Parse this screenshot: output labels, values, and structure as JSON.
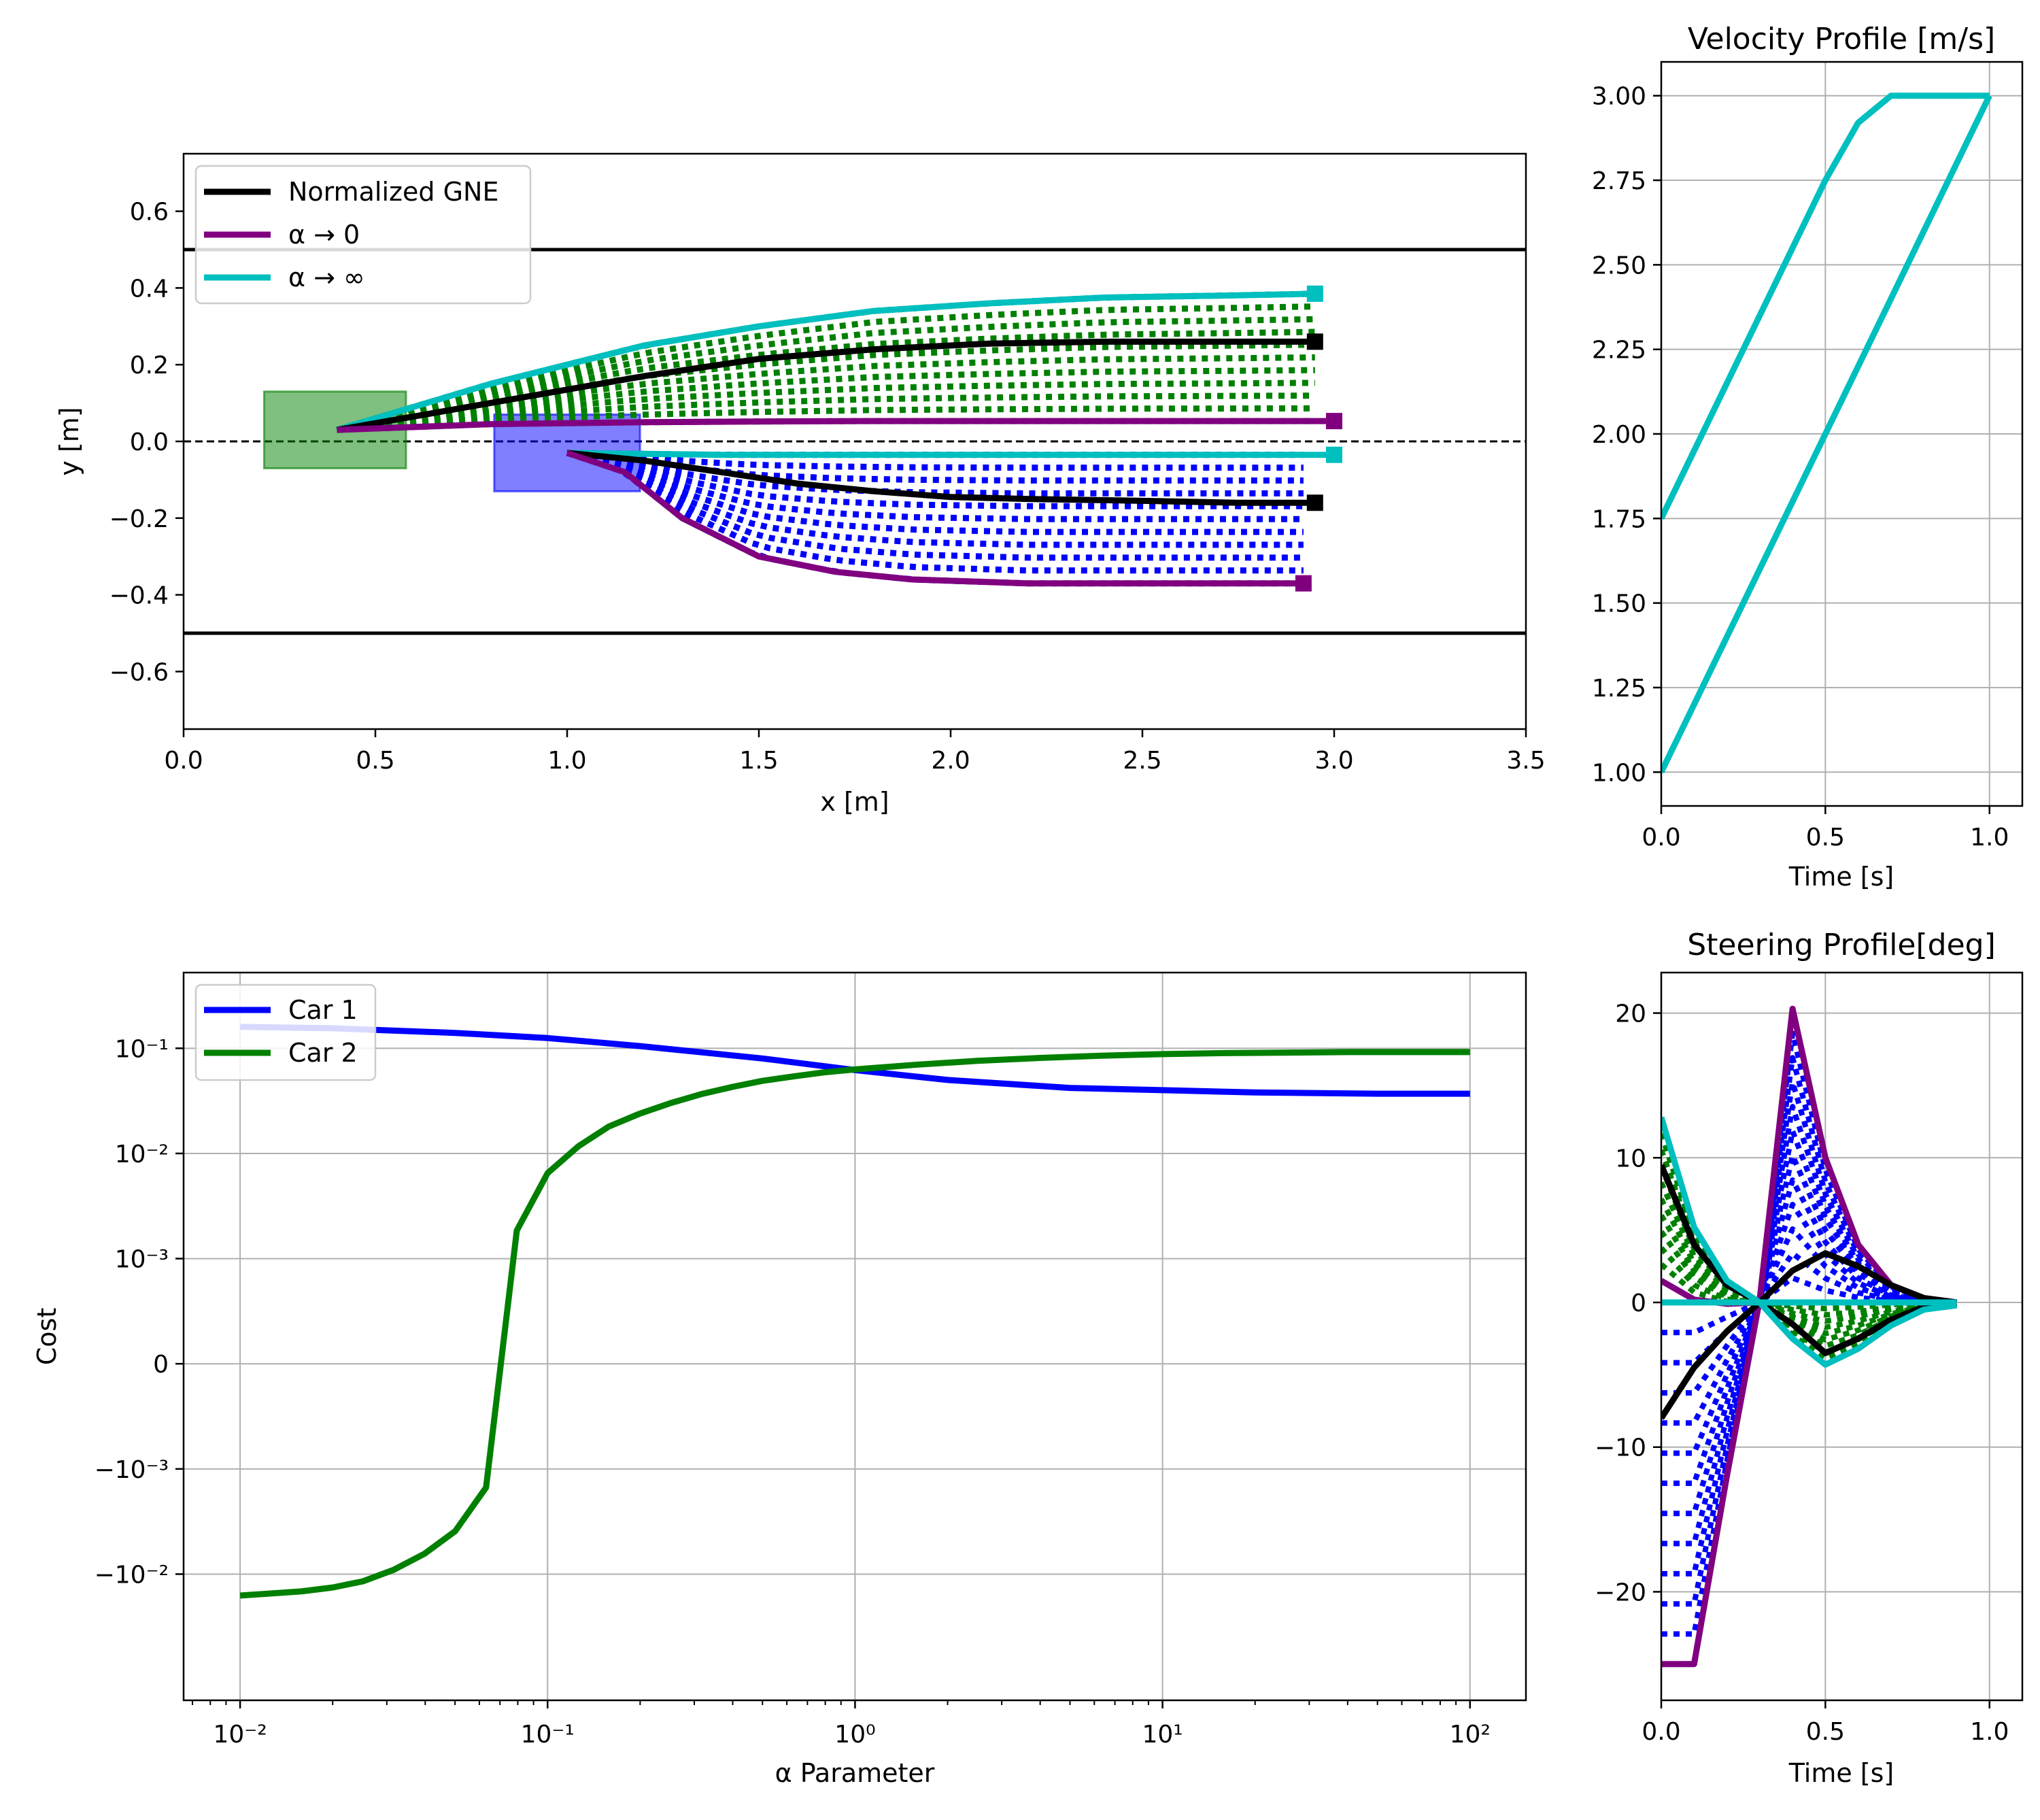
{
  "colors": {
    "gne": "#000000",
    "alpha0": "#800080",
    "alphaInf": "#00BFBF",
    "car1": "#0000FF",
    "car2": "#008000",
    "grid": "#b0b0b0"
  },
  "chart_data": [
    {
      "id": "trajectories",
      "type": "line",
      "title": "",
      "xlabel": "x [m]",
      "ylabel": "y [m]",
      "xlim": [
        0.0,
        3.5
      ],
      "ylim": [
        -0.75,
        0.75
      ],
      "xticks": [
        "0.0",
        "0.5",
        "1.0",
        "1.5",
        "2.0",
        "2.5",
        "3.0",
        "3.5"
      ],
      "yticks": [
        "0.6",
        "0.4",
        "0.2",
        "0.0",
        "−0.2",
        "−0.4",
        "−0.6"
      ],
      "legend": {
        "placement": "upper-left",
        "entries": [
          "Normalized GNE",
          "α →  0",
          "α → ∞"
        ]
      },
      "lane_bounds": [
        0.5,
        -0.5
      ],
      "center_line": 0.0,
      "vehicles": [
        {
          "name": "Car 2 start",
          "x": [
            0.21,
            0.58
          ],
          "y": [
            -0.07,
            0.13
          ],
          "color": "#008000"
        },
        {
          "name": "Car 1 start",
          "x": [
            0.81,
            1.19
          ],
          "y": [
            -0.13,
            0.07
          ],
          "color": "#0000FF"
        }
      ],
      "series": [
        {
          "name": "Car 2 α → ∞",
          "x": [
            0.4,
            0.8,
            1.2,
            1.5,
            1.8,
            2.1,
            2.4,
            2.7,
            2.95
          ],
          "y": [
            0.03,
            0.15,
            0.25,
            0.3,
            0.34,
            0.36,
            0.375,
            0.38,
            0.385
          ]
        },
        {
          "name": "Car 2 Normalized GNE",
          "x": [
            0.4,
            0.8,
            1.2,
            1.5,
            1.8,
            2.1,
            2.4,
            2.7,
            2.95
          ],
          "y": [
            0.03,
            0.1,
            0.17,
            0.215,
            0.24,
            0.255,
            0.26,
            0.26,
            0.26
          ]
        },
        {
          "name": "Car 2 α → 0",
          "x": [
            0.4,
            0.8,
            1.2,
            1.5,
            1.8,
            2.1,
            2.4,
            2.7,
            3.0
          ],
          "y": [
            0.03,
            0.045,
            0.05,
            0.052,
            0.053,
            0.053,
            0.053,
            0.053,
            0.053
          ]
        },
        {
          "name": "Car 1 α → ∞",
          "x": [
            1.0,
            1.4,
            1.8,
            2.2,
            2.6,
            3.0
          ],
          "y": [
            -0.03,
            -0.035,
            -0.035,
            -0.035,
            -0.035,
            -0.035
          ]
        },
        {
          "name": "Car 1 Normalized GNE",
          "x": [
            1.0,
            1.2,
            1.4,
            1.6,
            1.8,
            2.0,
            2.2,
            2.5,
            2.75,
            2.95
          ],
          "y": [
            -0.03,
            -0.05,
            -0.08,
            -0.11,
            -0.13,
            -0.145,
            -0.15,
            -0.155,
            -0.16,
            -0.16
          ]
        },
        {
          "name": "Car 1 α → 0",
          "x": [
            1.0,
            1.15,
            1.3,
            1.5,
            1.7,
            1.9,
            2.2,
            2.5,
            2.75,
            2.92
          ],
          "y": [
            -0.03,
            -0.08,
            -0.2,
            -0.3,
            -0.34,
            -0.36,
            -0.37,
            -0.37,
            -0.37,
            -0.37
          ]
        }
      ]
    },
    {
      "id": "velocity",
      "type": "line",
      "title": "Velocity Profile [m/s]",
      "xlabel": "Time [s]",
      "ylabel": "",
      "xlim": [
        0.0,
        1.1
      ],
      "ylim": [
        0.9,
        3.1
      ],
      "xticks": [
        "0.0",
        "0.5",
        "1.0"
      ],
      "yticks": [
        "3.00",
        "2.75",
        "2.50",
        "2.25",
        "2.00",
        "1.75",
        "1.50",
        "1.25",
        "1.00"
      ],
      "series": [
        {
          "name": "upper",
          "x": [
            0.0,
            0.5,
            0.6,
            0.7,
            1.0
          ],
          "y": [
            1.75,
            2.75,
            2.92,
            3.0,
            3.0
          ]
        },
        {
          "name": "lower",
          "x": [
            0.0,
            0.5,
            1.0
          ],
          "y": [
            1.0,
            2.0,
            3.0
          ]
        }
      ]
    },
    {
      "id": "cost",
      "type": "line",
      "title": "",
      "xlabel": "α Parameter",
      "ylabel": "Cost",
      "xscale": "log",
      "yscale": "symlog",
      "xlim": [
        0.00655,
        152
      ],
      "yticks": [
        "10⁻¹",
        "10⁻²",
        "10⁻³",
        "0",
        "−10⁻³",
        "−10⁻²"
      ],
      "xticks": [
        "10⁻²",
        "10⁻¹",
        "10⁰",
        "10¹",
        "10²"
      ],
      "legend": {
        "placement": "upper-left",
        "entries": [
          "Car 1",
          "Car 2"
        ]
      },
      "series": [
        {
          "name": "Car 1",
          "x": [
            0.01,
            0.02,
            0.05,
            0.1,
            0.2,
            0.5,
            1,
            2,
            5,
            10,
            20,
            50,
            100
          ],
          "y": [
            0.16,
            0.155,
            0.14,
            0.125,
            0.105,
            0.08,
            0.062,
            0.05,
            0.042,
            0.04,
            0.038,
            0.037,
            0.037
          ]
        },
        {
          "name": "Car 2",
          "x": [
            0.01,
            0.0158,
            0.02,
            0.0251,
            0.0316,
            0.0398,
            0.0501,
            0.0631,
            0.0794,
            0.1,
            0.126,
            0.158,
            0.2,
            0.25,
            0.32,
            0.4,
            0.5,
            0.63,
            0.79,
            1.0,
            1.6,
            2.5,
            4,
            6.3,
            10,
            16,
            25,
            40,
            63,
            100
          ],
          "y": [
            -0.016,
            -0.0146,
            -0.0134,
            -0.0117,
            -0.0091,
            -0.0064,
            -0.0039,
            -0.0015,
            0.00185,
            0.0065,
            0.0117,
            0.018,
            0.024,
            0.03,
            0.037,
            0.043,
            0.049,
            0.054,
            0.059,
            0.063,
            0.07,
            0.076,
            0.081,
            0.085,
            0.088,
            0.09,
            0.091,
            0.092,
            0.092,
            0.092
          ]
        }
      ]
    },
    {
      "id": "steering",
      "type": "line",
      "title": "Steering Profile[deg]",
      "xlabel": "Time [s]",
      "ylabel": "",
      "xlim": [
        0.0,
        1.1
      ],
      "ylim": [
        -27.5,
        22.8
      ],
      "xticks": [
        "0.0",
        "0.5",
        "1.0"
      ],
      "yticks": [
        "20",
        "10",
        "0",
        "−10",
        "−20"
      ],
      "series": [
        {
          "name": "α → 0 car 1",
          "x": [
            0.0,
            0.1,
            0.2,
            0.3,
            0.4,
            0.5,
            0.6,
            0.7,
            0.8,
            0.9
          ],
          "y": [
            -25,
            -25,
            -12,
            0.2,
            20.3,
            10,
            4,
            1.2,
            0.3,
            0
          ]
        },
        {
          "name": "α → 0 car 2",
          "x": [
            0.0,
            0.1,
            0.2,
            0.3,
            0.4,
            0.5,
            0.6,
            0.7,
            0.8,
            0.9
          ],
          "y": [
            1.5,
            0.2,
            -0.1,
            0,
            0,
            0,
            0,
            0,
            0,
            0
          ]
        },
        {
          "name": "GNE car 1",
          "x": [
            0.0,
            0.1,
            0.2,
            0.3,
            0.4,
            0.5,
            0.6,
            0.7,
            0.8,
            0.9
          ],
          "y": [
            -8,
            -4.5,
            -2,
            0,
            2.2,
            3.4,
            2.5,
            1.2,
            0.3,
            0
          ]
        },
        {
          "name": "GNE car 2",
          "x": [
            0.0,
            0.1,
            0.2,
            0.3,
            0.4,
            0.5,
            0.6,
            0.7,
            0.8,
            0.9
          ],
          "y": [
            9.5,
            4,
            1.2,
            0,
            -1.5,
            -3.5,
            -2.5,
            -1.2,
            -0.3,
            0
          ]
        },
        {
          "name": "α → ∞ car 1",
          "x": [
            0.0,
            0.1,
            0.2,
            0.3,
            0.4,
            0.5,
            0.6,
            0.7,
            0.8,
            0.9
          ],
          "y": [
            0,
            0,
            0,
            0,
            0,
            0,
            0,
            0,
            0,
            0
          ]
        },
        {
          "name": "α → ∞ car 2",
          "x": [
            0.0,
            0.1,
            0.2,
            0.3,
            0.4,
            0.5,
            0.6,
            0.7,
            0.8,
            0.9
          ],
          "y": [
            12.8,
            5.2,
            1.5,
            0,
            -2.5,
            -4.3,
            -3.2,
            -1.6,
            -0.5,
            -0.2
          ]
        }
      ]
    }
  ]
}
